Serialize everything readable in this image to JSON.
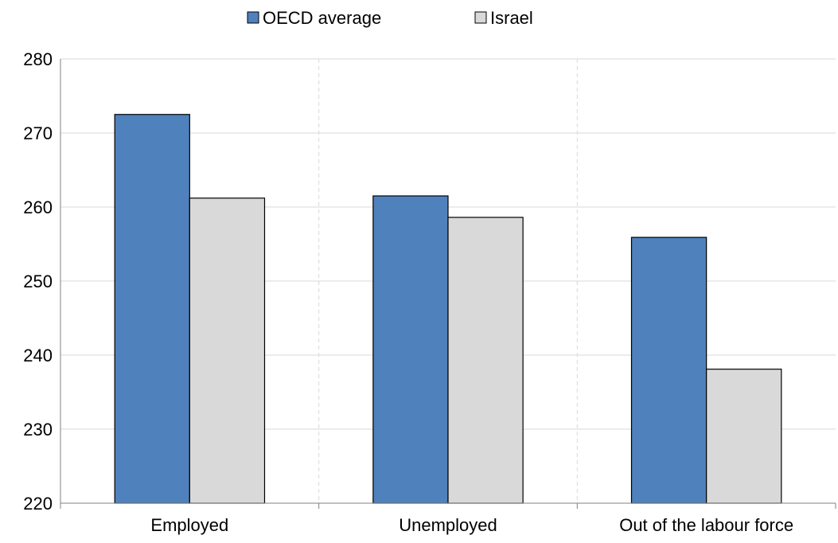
{
  "chart_data": {
    "type": "bar",
    "title": "",
    "xlabel": "",
    "ylabel": "",
    "categories": [
      "Employed",
      "Unemployed",
      "Out of the labour force"
    ],
    "series": [
      {
        "name": "OECD average",
        "values": [
          272.5,
          261.5,
          255.9
        ],
        "color": "#4f81bd"
      },
      {
        "name": "Israel",
        "values": [
          261.2,
          258.6,
          238.1
        ],
        "color": "#d9d9d9"
      }
    ],
    "ylim": [
      220,
      280
    ],
    "yticks": [
      220,
      230,
      240,
      250,
      260,
      270,
      280
    ],
    "grid": true,
    "legend_position": "top-center"
  }
}
